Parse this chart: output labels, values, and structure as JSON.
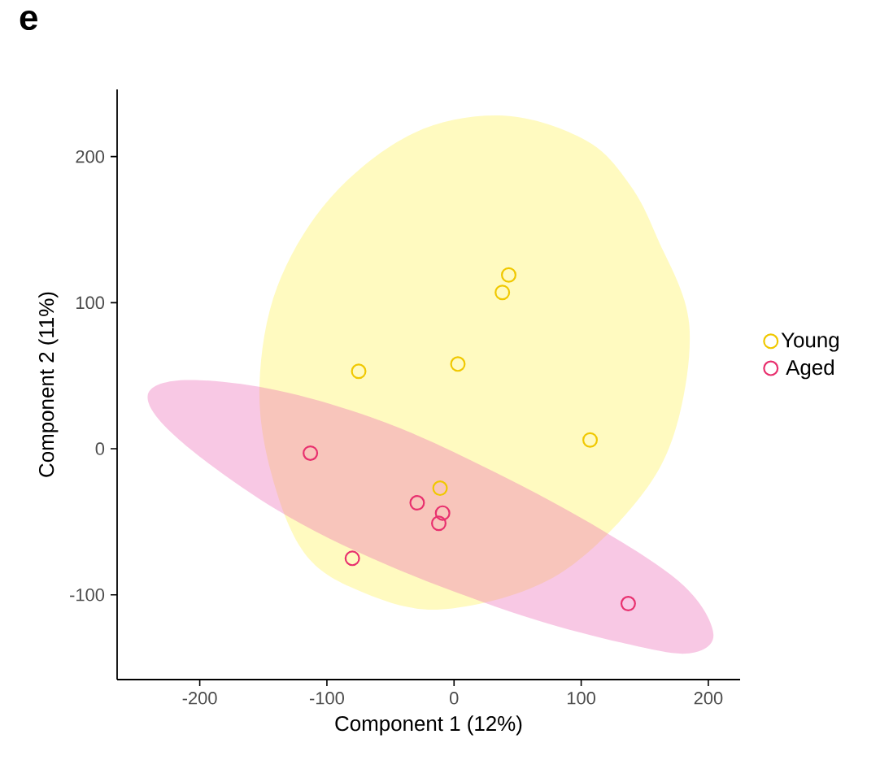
{
  "chart_data": {
    "type": "scatter",
    "title": "e",
    "xlabel": "Component 1 (12%)",
    "ylabel": "Component 2 (11%)",
    "xlim": [
      -265,
      225
    ],
    "ylim": [
      -158,
      246
    ],
    "xticks": [
      -200,
      -100,
      0,
      100,
      200
    ],
    "yticks": [
      -100,
      0,
      100,
      200
    ],
    "grid": false,
    "legend": "right",
    "series": [
      {
        "type": "area",
        "color": "#fff04b",
        "x": [
          39,
          104,
          138,
          160,
          185,
          173,
          138,
          74,
          -11,
          -75,
          -118,
          -144,
          -153,
          -139,
          -97,
          -32
        ],
        "values": [
          228,
          211,
          181,
          144,
          85,
          10,
          -42,
          -90,
          -110,
          -97,
          -71,
          -16,
          44,
          111,
          172,
          216
        ]
      },
      {
        "type": "area",
        "color": "#eb62b2",
        "x": [
          -241,
          -212,
          -139,
          -54,
          32,
          117,
          181,
          204,
          185,
          138,
          53,
          -54,
          -139,
          -216
        ],
        "values": [
          36,
          47,
          40,
          18,
          -16,
          -56,
          -94,
          -127,
          -140,
          -134,
          -114,
          -79,
          -42,
          6
        ]
      },
      {
        "name": "Young",
        "color": "#f0c800",
        "marker": "circle",
        "x": [
          43,
          38,
          -75,
          3,
          107,
          -11
        ],
        "values": [
          119,
          107,
          53,
          58,
          6,
          -27
        ]
      },
      {
        "name": "Aged",
        "color": "#e8306e",
        "marker": "circle",
        "x": [
          -113,
          -29,
          -9,
          -12,
          -80,
          137
        ],
        "values": [
          -3,
          -37,
          -44,
          -51,
          -75,
          -106
        ]
      }
    ]
  }
}
